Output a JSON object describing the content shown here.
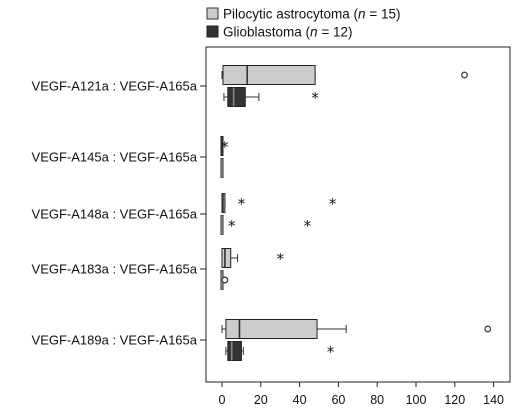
{
  "chart_data": {
    "type": "boxplot",
    "orientation": "horizontal",
    "xlim": [
      -5,
      145
    ],
    "xticks": [
      0,
      20,
      40,
      60,
      80,
      100,
      120,
      140
    ],
    "legend": {
      "placement": "top",
      "entries": [
        {
          "prefix": "Pilocytic astrocytoma (",
          "italic": "n",
          "suffix": " = 15)",
          "color": "#cccccc"
        },
        {
          "prefix": "Glioblastoma (",
          "italic": "n",
          "suffix": " = 12)",
          "color": "#333333"
        }
      ]
    },
    "categories": [
      "VEGF-A121a : VEGF-A165a",
      "VEGF-A145a : VEGF-A165a",
      "VEGF-A148a : VEGF-A165a",
      "VEGF-A183a : VEGF-A165a",
      "VEGF-A189a : VEGF-A165a"
    ],
    "series": [
      {
        "name": "Pilocytic astrocytoma",
        "color": "#cccccc",
        "boxes": [
          {
            "whisker_low": 0,
            "q1": 0.5,
            "median": 13,
            "q3": 48,
            "whisker_high": 48,
            "outliers": [
              {
                "value": 125,
                "marker": "circle"
              }
            ]
          },
          {
            "whisker_low": 0,
            "q1": 0,
            "median": 0,
            "q3": 0,
            "whisker_high": 0,
            "outliers": [
              {
                "value": 1.5,
                "marker": "star"
              }
            ]
          },
          {
            "whisker_low": 0,
            "q1": 0,
            "median": 0.5,
            "q3": 1.5,
            "whisker_high": 1.5,
            "outliers": [
              {
                "value": 10,
                "marker": "star"
              },
              {
                "value": 57,
                "marker": "star"
              }
            ]
          },
          {
            "whisker_low": 0,
            "q1": 0,
            "median": 1.5,
            "q3": 4.5,
            "whisker_high": 8,
            "outliers": [
              {
                "value": 30,
                "marker": "star"
              }
            ]
          },
          {
            "whisker_low": 0,
            "q1": 2,
            "median": 9,
            "q3": 49,
            "whisker_high": 64,
            "outliers": [
              {
                "value": 137,
                "marker": "circle"
              }
            ]
          }
        ]
      },
      {
        "name": "Glioblastoma",
        "color": "#333333",
        "boxes": [
          {
            "whisker_low": 1,
            "q1": 3,
            "median": 6,
            "q3": 12,
            "whisker_high": 19,
            "outliers": [
              {
                "value": 48,
                "marker": "star"
              }
            ]
          },
          {
            "whisker_low": 0,
            "q1": 0,
            "median": 0,
            "q3": 0,
            "whisker_high": 0,
            "outliers": []
          },
          {
            "whisker_low": 0,
            "q1": 0,
            "median": 0,
            "q3": 0.5,
            "whisker_high": 0.5,
            "outliers": [
              {
                "value": 5,
                "marker": "star"
              },
              {
                "value": 44,
                "marker": "star"
              }
            ]
          },
          {
            "whisker_low": 0,
            "q1": 0,
            "median": 0,
            "q3": 0.5,
            "whisker_high": 0.5,
            "outliers": [
              {
                "value": 1.5,
                "marker": "circle"
              }
            ]
          },
          {
            "whisker_low": 2,
            "q1": 3,
            "median": 5,
            "q3": 10,
            "whisker_high": 11,
            "outliers": [
              {
                "value": 56,
                "marker": "star"
              }
            ]
          }
        ]
      }
    ]
  }
}
